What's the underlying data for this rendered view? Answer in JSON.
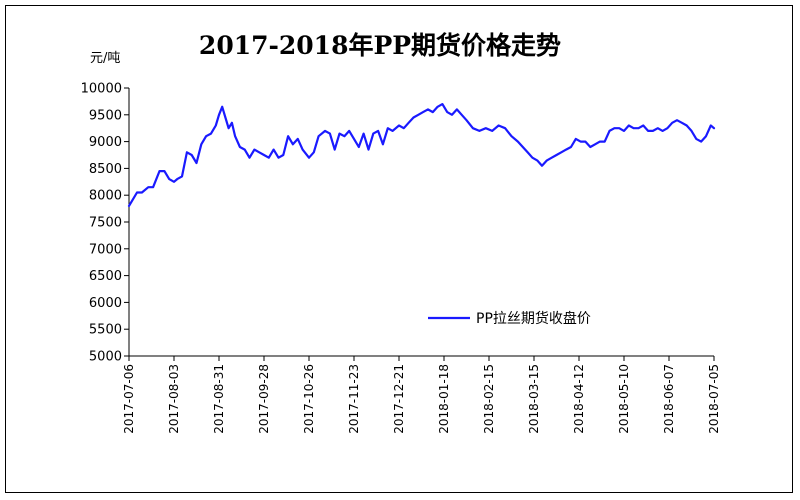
{
  "chart_data": {
    "type": "line",
    "title": "2017-2018年PP期货价格走势",
    "ylabel": "元/吨",
    "ylim": [
      5000,
      10000
    ],
    "yticks": [
      5000,
      5500,
      6000,
      6500,
      7000,
      7500,
      8000,
      8500,
      9000,
      9500,
      10000
    ],
    "x_range": [
      "2017-07-06",
      "2018-07-05"
    ],
    "xtick_labels": [
      "2017-07-06",
      "2017-08-03",
      "2017-08-31",
      "2017-09-28",
      "2017-10-26",
      "2017-11-23",
      "2017-12-21",
      "2018-01-18",
      "2018-02-15",
      "2018-03-15",
      "2018-04-12",
      "2018-05-10",
      "2018-06-07",
      "2018-07-05"
    ],
    "legend_position": "right",
    "grid": false,
    "series": [
      {
        "name": "PP拉丝期货收盘价",
        "color": "#1a1aff",
        "points": [
          [
            "2017-07-06",
            7800
          ],
          [
            "2017-07-08",
            7900
          ],
          [
            "2017-07-11",
            8050
          ],
          [
            "2017-07-14",
            8050
          ],
          [
            "2017-07-18",
            8150
          ],
          [
            "2017-07-21",
            8150
          ],
          [
            "2017-07-25",
            8450
          ],
          [
            "2017-07-28",
            8450
          ],
          [
            "2017-07-31",
            8300
          ],
          [
            "2017-08-03",
            8250
          ],
          [
            "2017-08-05",
            8300
          ],
          [
            "2017-08-08",
            8350
          ],
          [
            "2017-08-11",
            8800
          ],
          [
            "2017-08-14",
            8750
          ],
          [
            "2017-08-17",
            8600
          ],
          [
            "2017-08-20",
            8950
          ],
          [
            "2017-08-23",
            9100
          ],
          [
            "2017-08-26",
            9150
          ],
          [
            "2017-08-29",
            9300
          ],
          [
            "2017-08-31",
            9500
          ],
          [
            "2017-09-02",
            9650
          ],
          [
            "2017-09-04",
            9450
          ],
          [
            "2017-09-06",
            9250
          ],
          [
            "2017-09-08",
            9350
          ],
          [
            "2017-09-10",
            9100
          ],
          [
            "2017-09-13",
            8900
          ],
          [
            "2017-09-16",
            8850
          ],
          [
            "2017-09-19",
            8700
          ],
          [
            "2017-09-22",
            8850
          ],
          [
            "2017-09-25",
            8800
          ],
          [
            "2017-09-28",
            8750
          ],
          [
            "2017-10-01",
            8700
          ],
          [
            "2017-10-04",
            8850
          ],
          [
            "2017-10-07",
            8700
          ],
          [
            "2017-10-10",
            8750
          ],
          [
            "2017-10-13",
            9100
          ],
          [
            "2017-10-16",
            8950
          ],
          [
            "2017-10-19",
            9050
          ],
          [
            "2017-10-22",
            8850
          ],
          [
            "2017-10-26",
            8700
          ],
          [
            "2017-10-29",
            8800
          ],
          [
            "2017-11-01",
            9100
          ],
          [
            "2017-11-05",
            9200
          ],
          [
            "2017-11-08",
            9150
          ],
          [
            "2017-11-11",
            8850
          ],
          [
            "2017-11-14",
            9150
          ],
          [
            "2017-11-17",
            9100
          ],
          [
            "2017-11-20",
            9200
          ],
          [
            "2017-11-23",
            9050
          ],
          [
            "2017-11-26",
            8900
          ],
          [
            "2017-11-29",
            9150
          ],
          [
            "2017-12-02",
            8850
          ],
          [
            "2017-12-05",
            9150
          ],
          [
            "2017-12-08",
            9200
          ],
          [
            "2017-12-11",
            8950
          ],
          [
            "2017-12-14",
            9250
          ],
          [
            "2017-12-17",
            9200
          ],
          [
            "2017-12-21",
            9300
          ],
          [
            "2017-12-24",
            9250
          ],
          [
            "2017-12-27",
            9350
          ],
          [
            "2017-12-30",
            9450
          ],
          [
            "2018-01-02",
            9500
          ],
          [
            "2018-01-05",
            9550
          ],
          [
            "2018-01-08",
            9600
          ],
          [
            "2018-01-11",
            9550
          ],
          [
            "2018-01-14",
            9650
          ],
          [
            "2018-01-17",
            9700
          ],
          [
            "2018-01-20",
            9550
          ],
          [
            "2018-01-23",
            9500
          ],
          [
            "2018-01-26",
            9600
          ],
          [
            "2018-01-29",
            9500
          ],
          [
            "2018-02-01",
            9400
          ],
          [
            "2018-02-05",
            9250
          ],
          [
            "2018-02-09",
            9200
          ],
          [
            "2018-02-13",
            9250
          ],
          [
            "2018-02-17",
            9200
          ],
          [
            "2018-02-21",
            9300
          ],
          [
            "2018-02-25",
            9250
          ],
          [
            "2018-03-01",
            9100
          ],
          [
            "2018-03-05",
            9000
          ],
          [
            "2018-03-08",
            8900
          ],
          [
            "2018-03-11",
            8800
          ],
          [
            "2018-03-14",
            8700
          ],
          [
            "2018-03-17",
            8650
          ],
          [
            "2018-03-20",
            8550
          ],
          [
            "2018-03-23",
            8650
          ],
          [
            "2018-03-26",
            8700
          ],
          [
            "2018-03-29",
            8750
          ],
          [
            "2018-04-01",
            8800
          ],
          [
            "2018-04-04",
            8850
          ],
          [
            "2018-04-07",
            8900
          ],
          [
            "2018-04-10",
            9050
          ],
          [
            "2018-04-13",
            9000
          ],
          [
            "2018-04-16",
            9000
          ],
          [
            "2018-04-19",
            8900
          ],
          [
            "2018-04-22",
            8950
          ],
          [
            "2018-04-25",
            9000
          ],
          [
            "2018-04-28",
            9000
          ],
          [
            "2018-05-01",
            9200
          ],
          [
            "2018-05-04",
            9250
          ],
          [
            "2018-05-07",
            9250
          ],
          [
            "2018-05-10",
            9200
          ],
          [
            "2018-05-13",
            9300
          ],
          [
            "2018-05-16",
            9250
          ],
          [
            "2018-05-19",
            9250
          ],
          [
            "2018-05-22",
            9300
          ],
          [
            "2018-05-25",
            9200
          ],
          [
            "2018-05-28",
            9200
          ],
          [
            "2018-05-31",
            9250
          ],
          [
            "2018-06-03",
            9200
          ],
          [
            "2018-06-06",
            9250
          ],
          [
            "2018-06-09",
            9350
          ],
          [
            "2018-06-12",
            9400
          ],
          [
            "2018-06-15",
            9350
          ],
          [
            "2018-06-18",
            9300
          ],
          [
            "2018-06-21",
            9200
          ],
          [
            "2018-06-24",
            9050
          ],
          [
            "2018-06-27",
            9000
          ],
          [
            "2018-06-30",
            9100
          ],
          [
            "2018-07-03",
            9300
          ],
          [
            "2018-07-05",
            9250
          ]
        ]
      }
    ]
  }
}
